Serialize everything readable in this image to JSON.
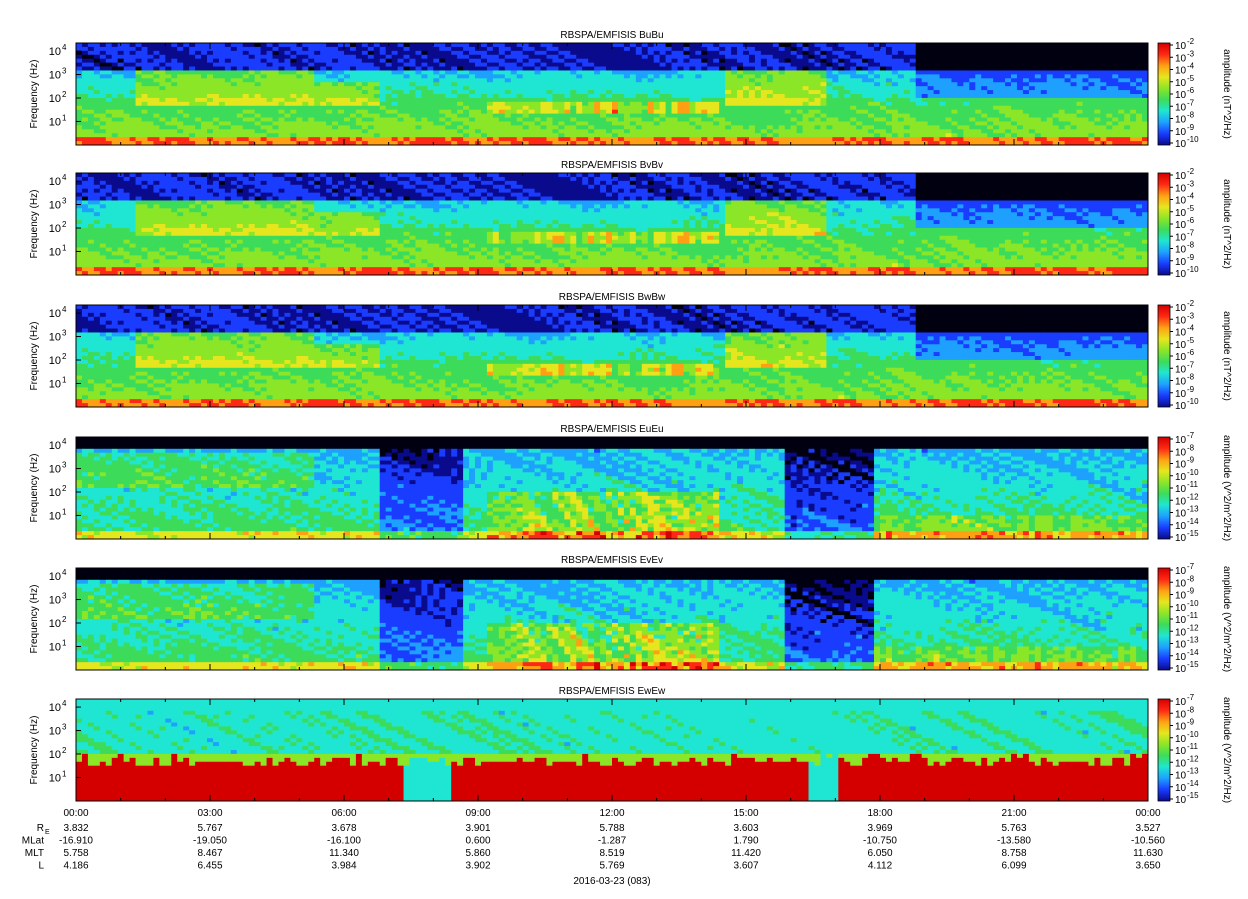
{
  "figure": {
    "date_label": "2016-03-23 (083)"
  },
  "chart_data": {
    "type": "heatmap",
    "x_ticks": [
      "00:00",
      "03:00",
      "06:00",
      "09:00",
      "12:00",
      "15:00",
      "18:00",
      "21:00",
      "00:00"
    ],
    "ephemeris": [
      {
        "label": "R",
        "sub": "E",
        "values": [
          "3.832",
          "5.767",
          "3.678",
          "3.901",
          "5.788",
          "3.603",
          "3.969",
          "5.763",
          "3.527"
        ]
      },
      {
        "label": "MLat",
        "sub": "",
        "values": [
          "-16.910",
          "-19.050",
          "-16.100",
          "0.600",
          "-1.287",
          "1.790",
          "-10.750",
          "-13.580",
          "-10.560"
        ]
      },
      {
        "label": "MLT",
        "sub": "",
        "values": [
          "5.758",
          "8.467",
          "11.340",
          "5.860",
          "8.519",
          "11.420",
          "6.050",
          "8.758",
          "11.630"
        ]
      },
      {
        "label": "L",
        "sub": "",
        "values": [
          "4.186",
          "6.455",
          "3.984",
          "3.902",
          "5.769",
          "3.607",
          "4.112",
          "6.099",
          "3.650"
        ]
      }
    ],
    "y_ticks": [
      "10",
      "10",
      "10",
      "10"
    ],
    "y_exps": [
      "1",
      "2",
      "3",
      "4"
    ],
    "ylabel": "Frequency (Hz)",
    "panels": [
      {
        "title": "RBSPA/EMFISIS  BuBu",
        "cbar_label": "amplitude (nT^2/Hz)",
        "cbar_exps": [
          "-2",
          "-3",
          "-4",
          "-5",
          "-6",
          "-7",
          "-8",
          "-9",
          "-10"
        ],
        "scale": "B"
      },
      {
        "title": "RBSPA/EMFISIS  BvBv",
        "cbar_label": "amplitude (nT^2/Hz)",
        "cbar_exps": [
          "-2",
          "-3",
          "-4",
          "-5",
          "-6",
          "-7",
          "-8",
          "-9",
          "-10"
        ],
        "scale": "B"
      },
      {
        "title": "RBSPA/EMFISIS  BwBw",
        "cbar_label": "amplitude (nT^2/Hz)",
        "cbar_exps": [
          "-2",
          "-3",
          "-4",
          "-5",
          "-6",
          "-7",
          "-8",
          "-9",
          "-10"
        ],
        "scale": "B"
      },
      {
        "title": "RBSPA/EMFISIS  EuEu",
        "cbar_label": "amplitude (V^2/m^2/Hz)",
        "cbar_exps": [
          "-7",
          "-8",
          "-9",
          "-10",
          "-11",
          "-12",
          "-13",
          "-14",
          "-15"
        ],
        "scale": "E"
      },
      {
        "title": "RBSPA/EMFISIS  EvEv",
        "cbar_label": "amplitude (V^2/m^2/Hz)",
        "cbar_exps": [
          "-7",
          "-8",
          "-9",
          "-10",
          "-11",
          "-12",
          "-13",
          "-14",
          "-15"
        ],
        "scale": "E"
      },
      {
        "title": "RBSPA/EMFISIS  EwEw",
        "cbar_label": "amplitude (V^2/m^2/Hz)",
        "cbar_exps": [
          "-7",
          "-8",
          "-9",
          "-10",
          "-11",
          "-12",
          "-13",
          "-14",
          "-15"
        ],
        "scale": "Ew"
      }
    ],
    "colormap": [
      "#0a0a8c",
      "#1a3cff",
      "#1ea0ff",
      "#1ee6d2",
      "#3cdc5a",
      "#8ce628",
      "#e6e61e",
      "#ffa014",
      "#ff2814",
      "#d40000"
    ]
  }
}
